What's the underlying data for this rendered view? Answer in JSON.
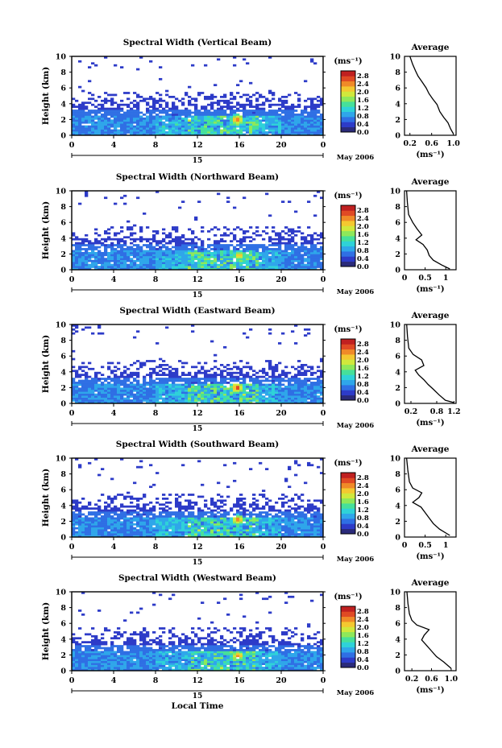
{
  "page": {
    "xlabel": "Local Time",
    "ylabel": "Height (km)",
    "date_label": "May 2006",
    "day_label": "15",
    "xticks": [
      "0",
      "4",
      "8",
      "12",
      "16",
      "20",
      "0"
    ],
    "yticks": [
      "0",
      "2",
      "4",
      "6",
      "8",
      "10"
    ],
    "colorbar_unit": "(ms⁻¹)",
    "colorbar_ticks": [
      "0.0",
      "0.4",
      "0.8",
      "1.2",
      "1.6",
      "2.0",
      "2.4",
      "2.8"
    ],
    "colorbar_colors": [
      "#2a2a7a",
      "#2d3bc8",
      "#2f6fe4",
      "#2fa6ea",
      "#2fd2d8",
      "#46e09a",
      "#8ee85a",
      "#d0e83c",
      "#f4c830",
      "#f08a28",
      "#e04a24",
      "#c02020"
    ],
    "avg_title": "Average",
    "avg_xlabel": "(ms⁻¹)"
  },
  "chart_data": [
    {
      "type": "heatmap",
      "title": "Spectral Width (Vertical Beam)",
      "x_range_hours": [
        0,
        24
      ],
      "y_range_km": [
        0,
        10
      ],
      "color_range": [
        0.0,
        2.8
      ],
      "hotspots": [
        {
          "time": 15.8,
          "height": 2.0,
          "value": 2.6
        },
        {
          "time": 17.5,
          "height": 1.4,
          "value": 1.8
        }
      ],
      "average": {
        "xticks": [
          "0.2",
          "0.6",
          "1.0"
        ],
        "xlim": [
          0.1,
          1.05
        ],
        "profile": [
          [
            0.2,
            10
          ],
          [
            0.25,
            9
          ],
          [
            0.3,
            8.2
          ],
          [
            0.35,
            7.5
          ],
          [
            0.42,
            6.8
          ],
          [
            0.5,
            6
          ],
          [
            0.55,
            5.3
          ],
          [
            0.62,
            4.6
          ],
          [
            0.7,
            3.9
          ],
          [
            0.75,
            3
          ],
          [
            0.82,
            2.3
          ],
          [
            0.9,
            1.6
          ],
          [
            0.95,
            0.8
          ],
          [
            1.0,
            0.2
          ]
        ]
      }
    },
    {
      "type": "heatmap",
      "title": "Spectral Width (Northward Beam)",
      "x_range_hours": [
        0,
        24
      ],
      "y_range_km": [
        0,
        10
      ],
      "color_range": [
        0.0,
        2.8
      ],
      "hotspots": [
        {
          "time": 16.0,
          "height": 1.8,
          "value": 2.2
        }
      ],
      "average": {
        "xticks": [
          "0",
          "0.5",
          "1"
        ],
        "xlim": [
          0,
          1.25
        ],
        "profile": [
          [
            0.05,
            10
          ],
          [
            0.07,
            8.5
          ],
          [
            0.1,
            7
          ],
          [
            0.2,
            6
          ],
          [
            0.3,
            5.2
          ],
          [
            0.42,
            4.4
          ],
          [
            0.28,
            3.8
          ],
          [
            0.45,
            3.2
          ],
          [
            0.55,
            2.5
          ],
          [
            0.6,
            1.8
          ],
          [
            0.7,
            1.2
          ],
          [
            0.9,
            0.6
          ],
          [
            1.1,
            0.1
          ]
        ]
      }
    },
    {
      "type": "heatmap",
      "title": "Spectral Width (Eastward Beam)",
      "x_range_hours": [
        0,
        24
      ],
      "y_range_km": [
        0,
        10
      ],
      "color_range": [
        0.0,
        2.8
      ],
      "hotspots": [
        {
          "time": 15.8,
          "height": 2.0,
          "value": 2.7
        }
      ],
      "average": {
        "xticks": [
          "0.2",
          "0.8",
          "1.2"
        ],
        "xlim": [
          0.05,
          1.25
        ],
        "profile": [
          [
            0.1,
            10
          ],
          [
            0.12,
            8.5
          ],
          [
            0.15,
            7
          ],
          [
            0.25,
            6.2
          ],
          [
            0.45,
            5.5
          ],
          [
            0.5,
            4.8
          ],
          [
            0.3,
            4.2
          ],
          [
            0.38,
            3.6
          ],
          [
            0.5,
            3
          ],
          [
            0.6,
            2.4
          ],
          [
            0.72,
            1.8
          ],
          [
            0.85,
            1.1
          ],
          [
            1.0,
            0.4
          ],
          [
            1.2,
            0.1
          ]
        ]
      }
    },
    {
      "type": "heatmap",
      "title": "Spectral Width (Southward Beam)",
      "x_range_hours": [
        0,
        24
      ],
      "y_range_km": [
        0,
        10
      ],
      "color_range": [
        0.0,
        2.8
      ],
      "hotspots": [
        {
          "time": 15.9,
          "height": 2.2,
          "value": 2.5
        }
      ],
      "average": {
        "xticks": [
          "0",
          "0.5",
          "1"
        ],
        "xlim": [
          0,
          1.25
        ],
        "profile": [
          [
            0.05,
            10
          ],
          [
            0.08,
            8.5
          ],
          [
            0.12,
            7
          ],
          [
            0.2,
            6.2
          ],
          [
            0.42,
            5.6
          ],
          [
            0.35,
            5
          ],
          [
            0.2,
            4.4
          ],
          [
            0.4,
            3.8
          ],
          [
            0.5,
            3.1
          ],
          [
            0.6,
            2.4
          ],
          [
            0.7,
            1.7
          ],
          [
            0.85,
            1
          ],
          [
            1.1,
            0.2
          ]
        ]
      }
    },
    {
      "type": "heatmap",
      "title": "Spectral Width (Westward Beam)",
      "x_range_hours": [
        0,
        24
      ],
      "y_range_km": [
        0,
        10
      ],
      "color_range": [
        0.0,
        2.8
      ],
      "hotspots": [
        {
          "time": 15.9,
          "height": 1.9,
          "value": 2.4
        }
      ],
      "average": {
        "xticks": [
          "0.2",
          "0.6",
          "1.0"
        ],
        "xlim": [
          0.05,
          1.1
        ],
        "profile": [
          [
            0.1,
            10
          ],
          [
            0.12,
            8.5
          ],
          [
            0.15,
            7.2
          ],
          [
            0.2,
            6.4
          ],
          [
            0.3,
            5.8
          ],
          [
            0.55,
            5.2
          ],
          [
            0.45,
            4.5
          ],
          [
            0.4,
            3.9
          ],
          [
            0.5,
            3.2
          ],
          [
            0.6,
            2.5
          ],
          [
            0.7,
            1.8
          ],
          [
            0.85,
            1.1
          ],
          [
            1.0,
            0.3
          ]
        ]
      }
    }
  ]
}
